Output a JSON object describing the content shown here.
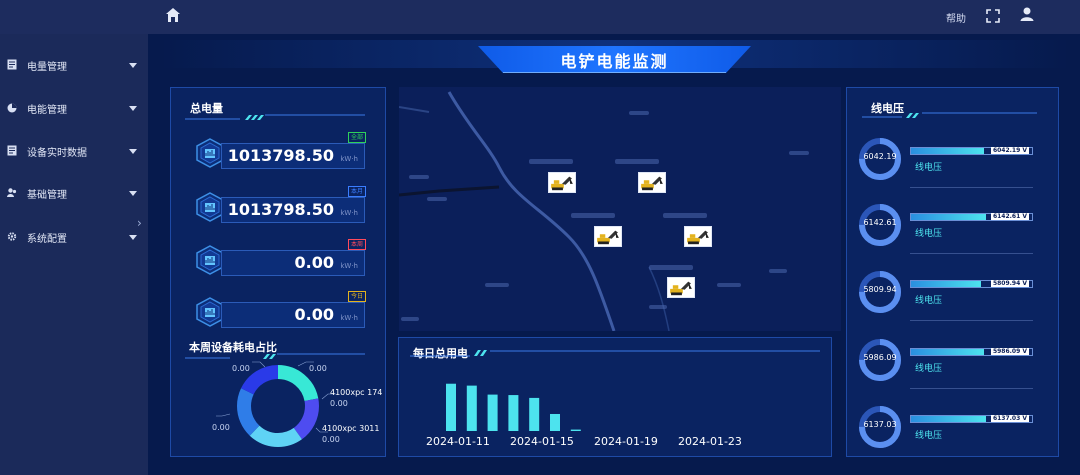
{
  "topbar": {
    "help_label": "帮助"
  },
  "sidebar": {
    "items": [
      {
        "label": "电量管理",
        "icon": "document-icon"
      },
      {
        "label": "电能管理",
        "icon": "pie-icon"
      },
      {
        "label": "设备实时数据",
        "icon": "document-icon"
      },
      {
        "label": "基础管理",
        "icon": "users-icon"
      },
      {
        "label": "系统配置",
        "icon": "gear-icon"
      }
    ]
  },
  "main": {
    "title": "电铲电能监测",
    "total_power": {
      "title": "总电量",
      "cards": [
        {
          "tag": "全部",
          "tag_color": "#2fd15a",
          "value": "1013798.50",
          "unit": "kW·h"
        },
        {
          "tag": "本月",
          "tag_color": "#3a7dff",
          "value": "1013798.50",
          "unit": "kW·h"
        },
        {
          "tag": "本周",
          "tag_color": "#ff4b5c",
          "value": "0.00",
          "unit": "kW·h"
        },
        {
          "tag": "今日",
          "tag_color": "#e3b21d",
          "value": "0.00",
          "unit": "kW·h"
        }
      ]
    },
    "week_share": {
      "title": "本周设备耗电占比",
      "labels": {
        "top_left": "0.00",
        "top_right": "0.00",
        "right_top_name": "4100xpc 174",
        "right_top_value": "0.00",
        "left_value": "0.00",
        "right_bottom_name": "4100xpc 3011",
        "right_bottom_value": "0.00"
      },
      "segments": [
        {
          "color": "#38e8d6",
          "share": 0.22
        },
        {
          "color": "#4e4cf0",
          "share": 0.18
        },
        {
          "color": "#5fd3f5",
          "share": 0.22
        },
        {
          "color": "#2f7de8",
          "share": 0.2
        },
        {
          "color": "#2a3ae8",
          "share": 0.18
        }
      ]
    },
    "daily_power": {
      "title": "每日总用电",
      "chart_data": {
        "type": "bar",
        "title": "每日总用电",
        "x_tick_labels": [
          "2024-01-11",
          "2024-01-15",
          "2024-01-19",
          "2024-01-23"
        ],
        "values": [
          100,
          96,
          77,
          76,
          70,
          36,
          3
        ],
        "ylim": [
          0,
          110
        ]
      }
    },
    "line_voltage": {
      "title": "线电压",
      "rows": [
        {
          "ring_value": "6042.19",
          "bar_value": "6042.19 V",
          "fill": 0.6,
          "label": "线电压"
        },
        {
          "ring_value": "6142.61",
          "bar_value": "6142.61 V",
          "fill": 0.62,
          "label": "线电压"
        },
        {
          "ring_value": "5809.94",
          "bar_value": "5809.94 V",
          "fill": 0.58,
          "label": "线电压"
        },
        {
          "ring_value": "5986.09",
          "bar_value": "5986.09 V",
          "fill": 0.6,
          "label": "线电压"
        },
        {
          "ring_value": "6137.03",
          "bar_value": "6137.03 V",
          "fill": 0.62,
          "label": "线电压"
        }
      ]
    }
  }
}
